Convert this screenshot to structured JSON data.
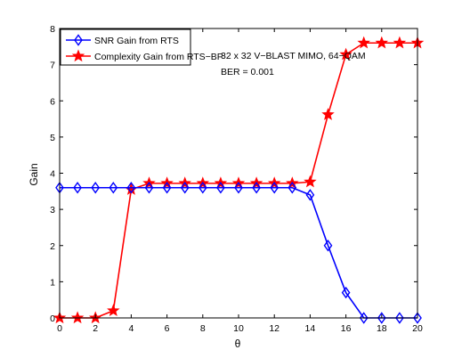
{
  "chart_data": {
    "type": "line",
    "title": "",
    "xlabel": "θ",
    "ylabel": "Gain",
    "xlim": [
      0,
      20
    ],
    "ylim": [
      0,
      8
    ],
    "xticks": [
      0,
      2,
      4,
      6,
      8,
      10,
      12,
      14,
      16,
      18,
      20
    ],
    "yticks": [
      0,
      1,
      2,
      3,
      4,
      5,
      6,
      7,
      8
    ],
    "grid": false,
    "legend_position": "top-left",
    "x": [
      0,
      1,
      2,
      3,
      4,
      5,
      6,
      7,
      8,
      9,
      10,
      11,
      12,
      13,
      14,
      15,
      16,
      17,
      18,
      19,
      20
    ],
    "series": [
      {
        "name": "SNR Gain from RTS",
        "color": "#0000ff",
        "marker": "diamond",
        "values": [
          3.6,
          3.6,
          3.6,
          3.6,
          3.6,
          3.6,
          3.6,
          3.6,
          3.6,
          3.6,
          3.6,
          3.6,
          3.6,
          3.6,
          3.4,
          2.0,
          0.7,
          0.0,
          0.0,
          0.0,
          0.0
        ]
      },
      {
        "name": "Complexity Gain from RTS−BP",
        "color": "#ff0000",
        "marker": "star",
        "values": [
          0.0,
          0.0,
          0.0,
          0.2,
          3.55,
          3.72,
          3.72,
          3.72,
          3.72,
          3.72,
          3.72,
          3.72,
          3.72,
          3.72,
          3.76,
          5.62,
          7.28,
          7.6,
          7.6,
          7.6,
          7.6
        ]
      }
    ],
    "annotations": [
      "32 x 32 V−BLAST MIMO, 64−QAM",
      "BER = 0.001"
    ]
  }
}
